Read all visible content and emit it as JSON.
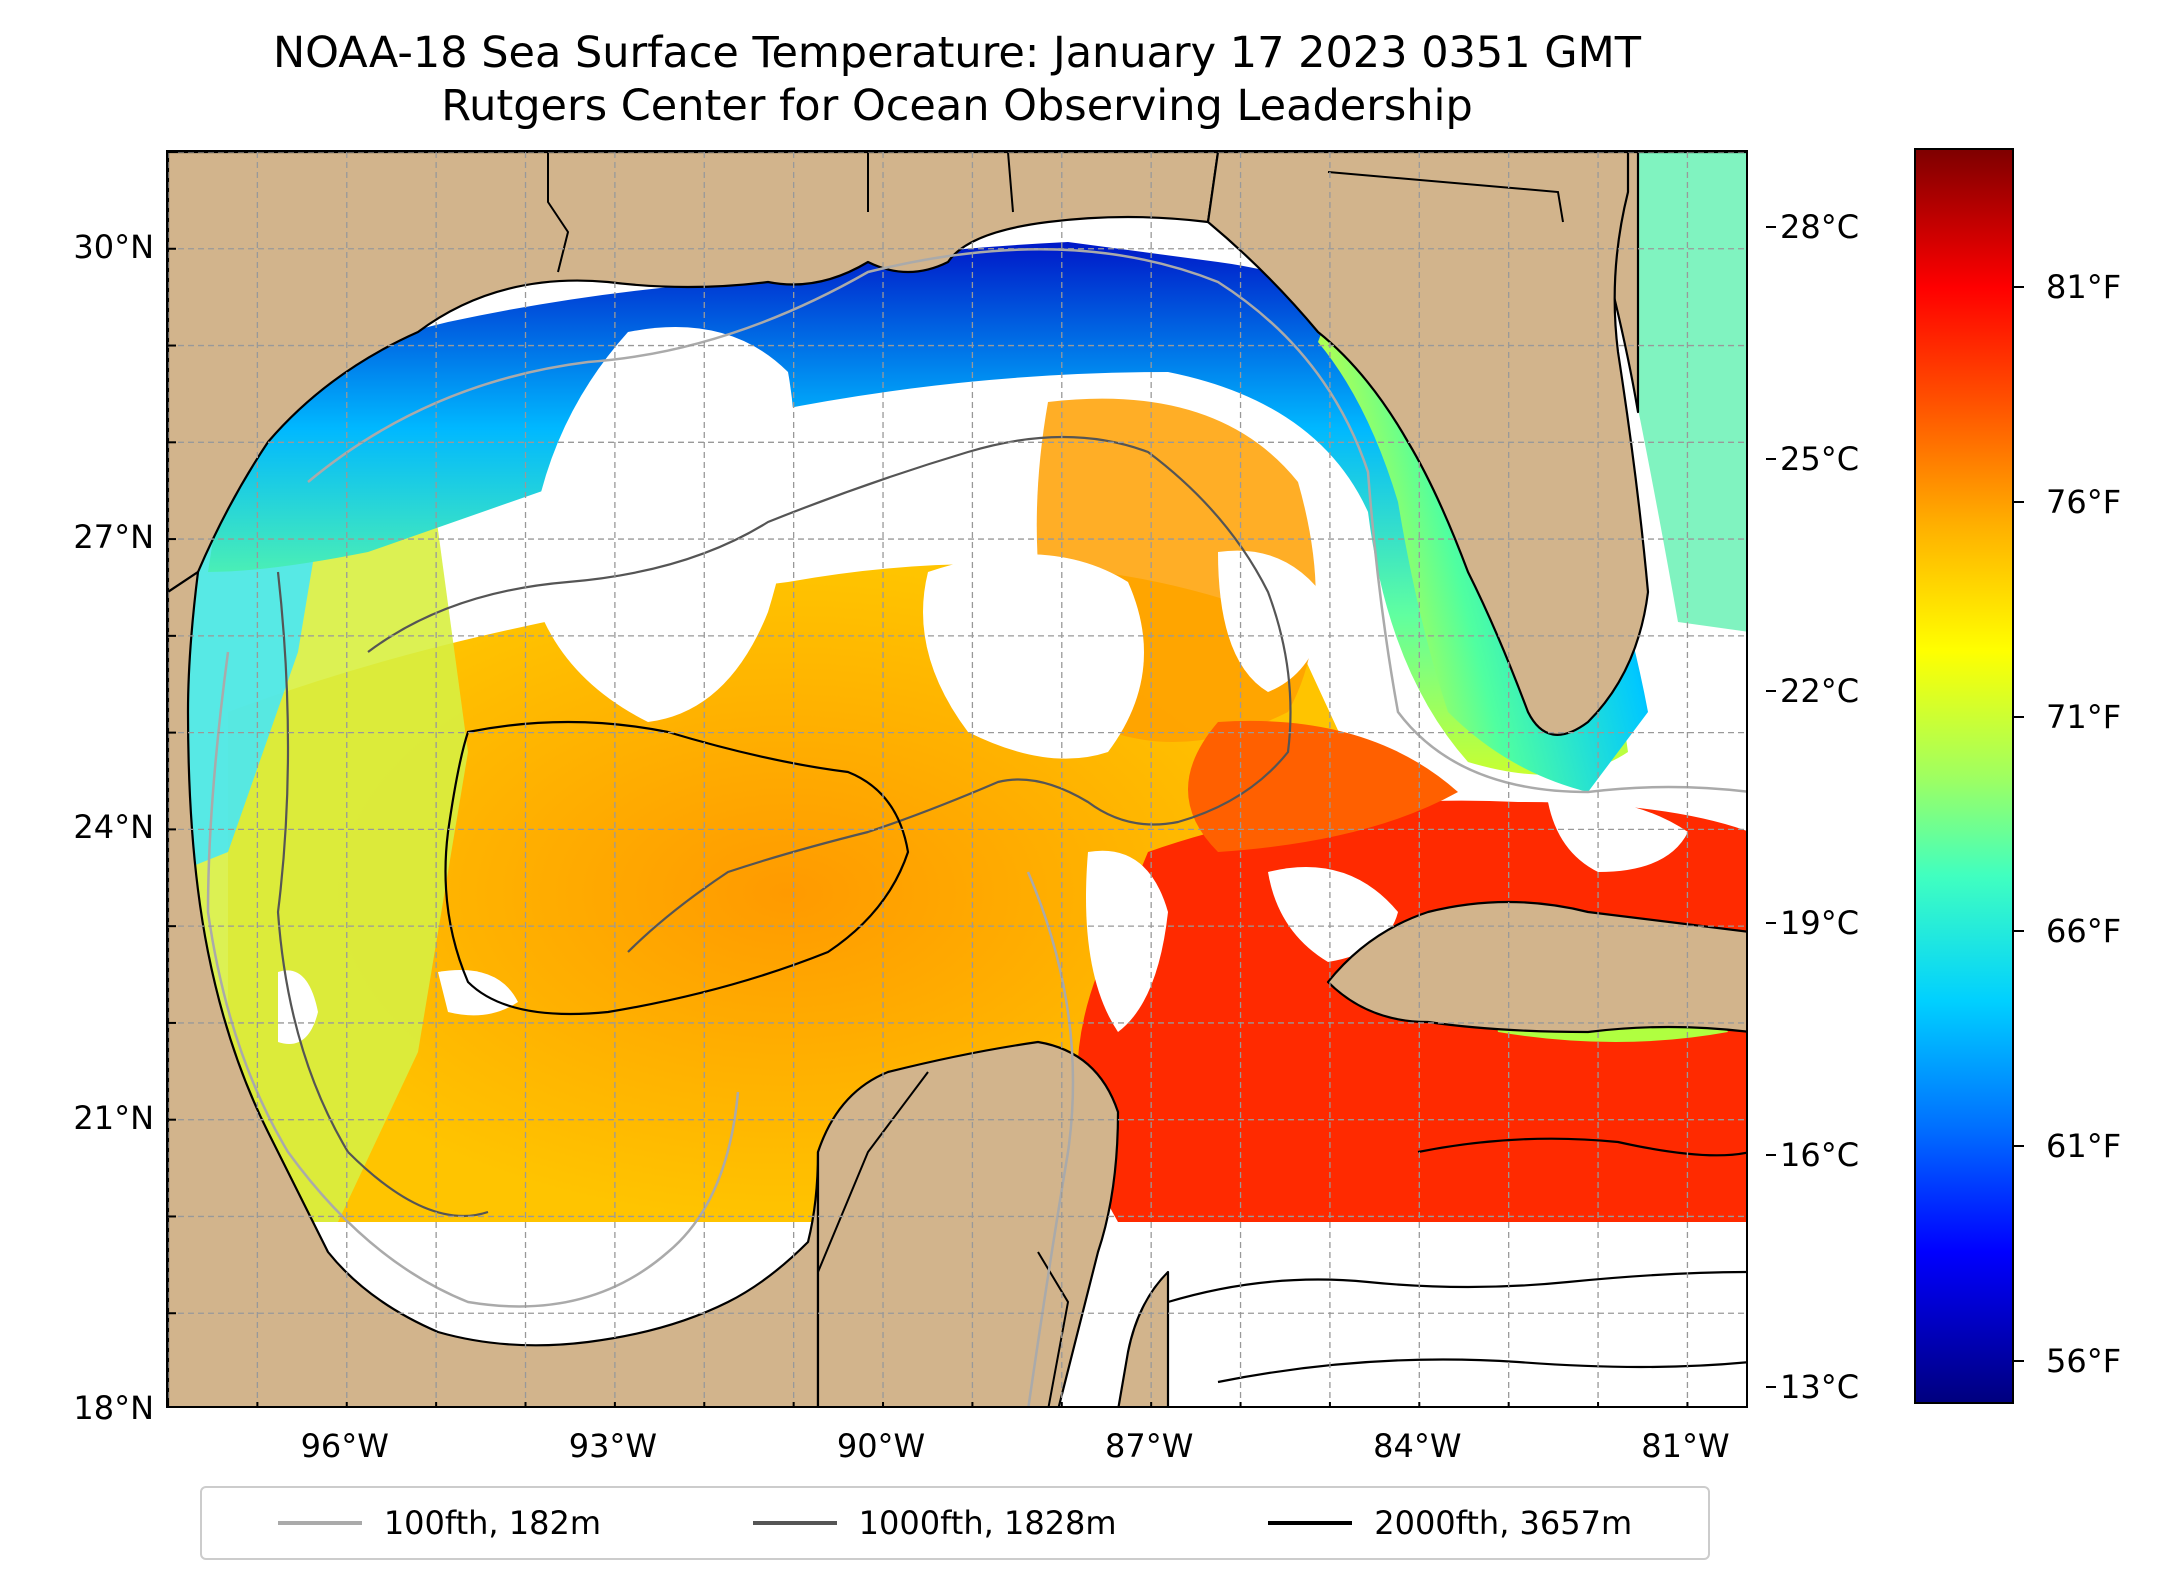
{
  "title": {
    "line1": "NOAA-18 Sea Surface Temperature: January 17 2023 0351 GMT",
    "line2": "Rutgers Center for Ocean Observing Leadership"
  },
  "map": {
    "lon_range": [
      -98,
      -80.3
    ],
    "lat_range": [
      18,
      31
    ],
    "grid": true,
    "land_color": "#d2b48c",
    "lat_ticks": [
      {
        "value": 30,
        "label": "30°N"
      },
      {
        "value": 27,
        "label": "27°N"
      },
      {
        "value": 24,
        "label": "24°N"
      },
      {
        "value": 21,
        "label": "21°N"
      },
      {
        "value": 18,
        "label": "18°N"
      }
    ],
    "lon_ticks": [
      {
        "value": -96,
        "label": "96°W"
      },
      {
        "value": -93,
        "label": "93°W"
      },
      {
        "value": -90,
        "label": "90°W"
      },
      {
        "value": -87,
        "label": "87°W"
      },
      {
        "value": -84,
        "label": "84°W"
      },
      {
        "value": -81,
        "label": "81°W"
      }
    ]
  },
  "colorbar": {
    "celsius_range": [
      12.8,
      29.0
    ],
    "celsius_ticks": [
      {
        "value": 28,
        "label": "28°C"
      },
      {
        "value": 25,
        "label": "25°C"
      },
      {
        "value": 22,
        "label": "22°C"
      },
      {
        "value": 19,
        "label": "19°C"
      },
      {
        "value": 16,
        "label": "16°C"
      },
      {
        "value": 13,
        "label": "13°C"
      }
    ],
    "fahrenheit_ticks": [
      {
        "value": 81,
        "label": "81°F"
      },
      {
        "value": 76,
        "label": "76°F"
      },
      {
        "value": 71,
        "label": "71°F"
      },
      {
        "value": 66,
        "label": "66°F"
      },
      {
        "value": 61,
        "label": "61°F"
      },
      {
        "value": 56,
        "label": "56°F"
      }
    ]
  },
  "legend": [
    {
      "label": "100fth, 182m",
      "color": "#aaaaaa"
    },
    {
      "label": "1000fth, 1828m",
      "color": "#555555"
    },
    {
      "label": "2000fth, 3657m",
      "color": "#000000"
    }
  ]
}
